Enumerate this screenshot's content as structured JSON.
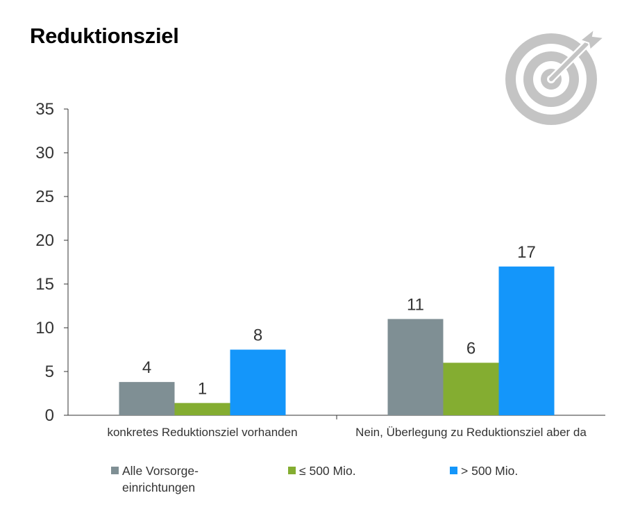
{
  "title": "Reduktionsziel",
  "icon": "target-arrow-icon",
  "colors": {
    "series": [
      "#7f8f94",
      "#84ad31",
      "#1496fa"
    ],
    "icon": "#c4c4c4",
    "axis": "#333333"
  },
  "chart_data": {
    "type": "bar",
    "title": "Reduktionsziel",
    "categories": [
      "konkretes Reduktionsziel vorhanden",
      "Nein, Überlegung zu Reduktionsziel aber da"
    ],
    "series": [
      {
        "name": "Alle Vorsorge-einrichtungen",
        "values": [
          3.8,
          11
        ],
        "labels": [
          "4",
          "11"
        ]
      },
      {
        "name": "≤ 500 Mio.",
        "values": [
          1.4,
          6
        ],
        "labels": [
          "1",
          "6"
        ]
      },
      {
        "name": "> 500 Mio.",
        "values": [
          7.5,
          17
        ],
        "labels": [
          "8",
          "17"
        ]
      }
    ],
    "yticks": [
      "0",
      "5",
      "10",
      "15",
      "20",
      "25",
      "30",
      "35"
    ],
    "ylim": [
      0,
      35
    ],
    "xlabel": "",
    "ylabel": "",
    "grid": false,
    "legend_position": "bottom"
  },
  "legend": [
    {
      "line1": "Alle Vorsorge-",
      "line2": "einrichtungen"
    },
    {
      "line1": "≤ 500 Mio.",
      "line2": ""
    },
    {
      "line1": "> 500 Mio.",
      "line2": ""
    }
  ]
}
